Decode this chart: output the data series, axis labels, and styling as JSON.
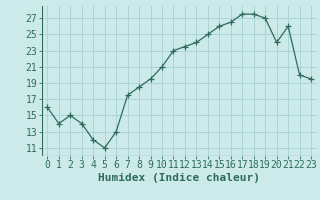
{
  "x": [
    0,
    1,
    2,
    3,
    4,
    5,
    6,
    7,
    8,
    9,
    10,
    11,
    12,
    13,
    14,
    15,
    16,
    17,
    18,
    19,
    20,
    21,
    22,
    23
  ],
  "y": [
    16,
    14,
    15,
    14,
    12,
    11,
    13,
    17.5,
    18.5,
    19.5,
    21,
    23,
    23.5,
    24,
    25,
    26,
    26.5,
    27.5,
    27.5,
    27,
    24,
    26,
    20,
    19.5
  ],
  "line_color": "#2e6b5e",
  "marker": "+",
  "marker_size": 4,
  "bg_color": "#cceaea",
  "grid_color": "#aad4d4",
  "xlabel": "Humidex (Indice chaleur)",
  "xlim": [
    -0.5,
    23.5
  ],
  "ylim": [
    10,
    28.5
  ],
  "yticks": [
    11,
    13,
    15,
    17,
    19,
    21,
    23,
    25,
    27
  ],
  "xticks": [
    0,
    1,
    2,
    3,
    4,
    5,
    6,
    7,
    8,
    9,
    10,
    11,
    12,
    13,
    14,
    15,
    16,
    17,
    18,
    19,
    20,
    21,
    22,
    23
  ],
  "tick_color": "#2e6b5e",
  "xlabel_color": "#2e6b5e",
  "xlabel_fontsize": 8,
  "tick_fontsize": 7
}
